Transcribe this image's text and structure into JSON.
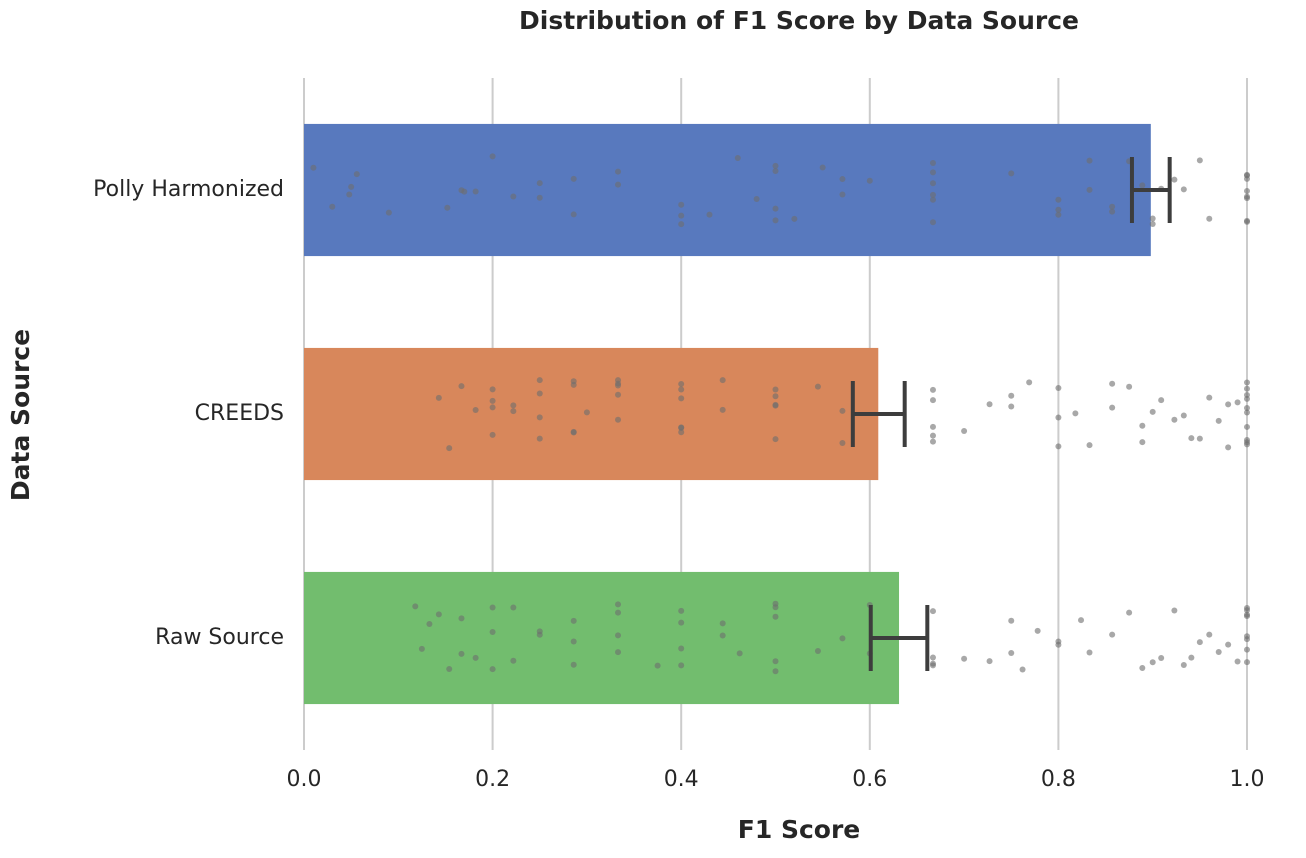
{
  "chart_data": {
    "type": "bar",
    "orientation": "horizontal",
    "title": "Distribution of F1 Score by Data Source",
    "x_label": "F1 Score",
    "y_label": "Data Source",
    "categories": [
      "Polly Harmonized",
      "CREEDS",
      "Raw Source"
    ],
    "colors": [
      "#5879be",
      "#d8875b",
      "#72bd6e"
    ],
    "values": [
      0.898,
      0.609,
      0.631
    ],
    "ci_low": [
      0.878,
      0.582,
      0.601
    ],
    "ci_high": [
      0.918,
      0.637,
      0.661
    ],
    "points": [
      [
        0.01,
        0.03,
        0.048,
        0.05,
        0.056,
        0.09,
        0.152,
        0.167,
        0.17,
        0.182,
        0.2,
        0.222,
        0.25,
        0.25,
        0.286,
        0.286,
        0.333,
        0.333,
        0.4,
        0.4,
        0.4,
        0.43,
        0.46,
        0.48,
        0.5,
        0.5,
        0.5,
        0.5,
        0.52,
        0.55,
        0.571,
        0.571,
        0.6,
        0.667,
        0.667,
        0.667,
        0.667,
        0.667,
        0.667,
        0.75,
        0.8,
        0.8,
        0.8,
        0.833,
        0.833,
        0.857,
        0.857,
        0.875,
        0.889,
        0.9,
        0.9,
        0.909,
        0.923,
        0.933,
        0.95,
        0.96,
        1.0,
        1.0,
        1.0,
        1.0,
        1.0,
        1.0,
        1.0,
        1.0
      ],
      [
        0.143,
        0.154,
        0.167,
        0.182,
        0.2,
        0.2,
        0.2,
        0.2,
        0.222,
        0.222,
        0.25,
        0.25,
        0.25,
        0.25,
        0.286,
        0.286,
        0.286,
        0.286,
        0.3,
        0.333,
        0.333,
        0.333,
        0.333,
        0.333,
        0.4,
        0.4,
        0.4,
        0.4,
        0.4,
        0.4,
        0.444,
        0.444,
        0.5,
        0.5,
        0.5,
        0.5,
        0.5,
        0.545,
        0.571,
        0.571,
        0.667,
        0.667,
        0.667,
        0.667,
        0.667,
        0.7,
        0.727,
        0.75,
        0.75,
        0.769,
        0.8,
        0.8,
        0.8,
        0.818,
        0.833,
        0.857,
        0.857,
        0.875,
        0.889,
        0.889,
        0.9,
        0.909,
        0.923,
        0.933,
        0.941,
        0.95,
        0.96,
        0.97,
        0.98,
        0.98,
        0.99,
        1.0,
        1.0,
        1.0,
        1.0,
        1.0,
        1.0,
        1.0,
        1.0,
        1.0,
        1.0
      ],
      [
        0.118,
        0.125,
        0.133,
        0.143,
        0.154,
        0.167,
        0.167,
        0.182,
        0.2,
        0.2,
        0.2,
        0.222,
        0.222,
        0.25,
        0.25,
        0.286,
        0.286,
        0.286,
        0.333,
        0.333,
        0.333,
        0.333,
        0.375,
        0.4,
        0.4,
        0.4,
        0.4,
        0.444,
        0.444,
        0.462,
        0.5,
        0.5,
        0.5,
        0.5,
        0.5,
        0.545,
        0.571,
        0.6,
        0.6,
        0.667,
        0.667,
        0.667,
        0.667,
        0.7,
        0.727,
        0.75,
        0.75,
        0.762,
        0.778,
        0.8,
        0.8,
        0.824,
        0.833,
        0.857,
        0.875,
        0.889,
        0.9,
        0.909,
        0.923,
        0.933,
        0.941,
        0.95,
        0.96,
        0.97,
        0.98,
        0.99,
        1.0,
        1.0,
        1.0,
        1.0,
        1.0,
        1.0,
        1.0,
        1.0
      ]
    ],
    "point_color": "#6e6e6e",
    "error_color": "#3d3d3d",
    "xlim": [
      0,
      1.0
    ],
    "xticks": [
      {
        "value": 0,
        "label": "0.0"
      },
      0.2,
      0.4,
      0.6,
      0.8,
      {
        "value": 1,
        "label": "1.0"
      }
    ],
    "grid": true
  }
}
